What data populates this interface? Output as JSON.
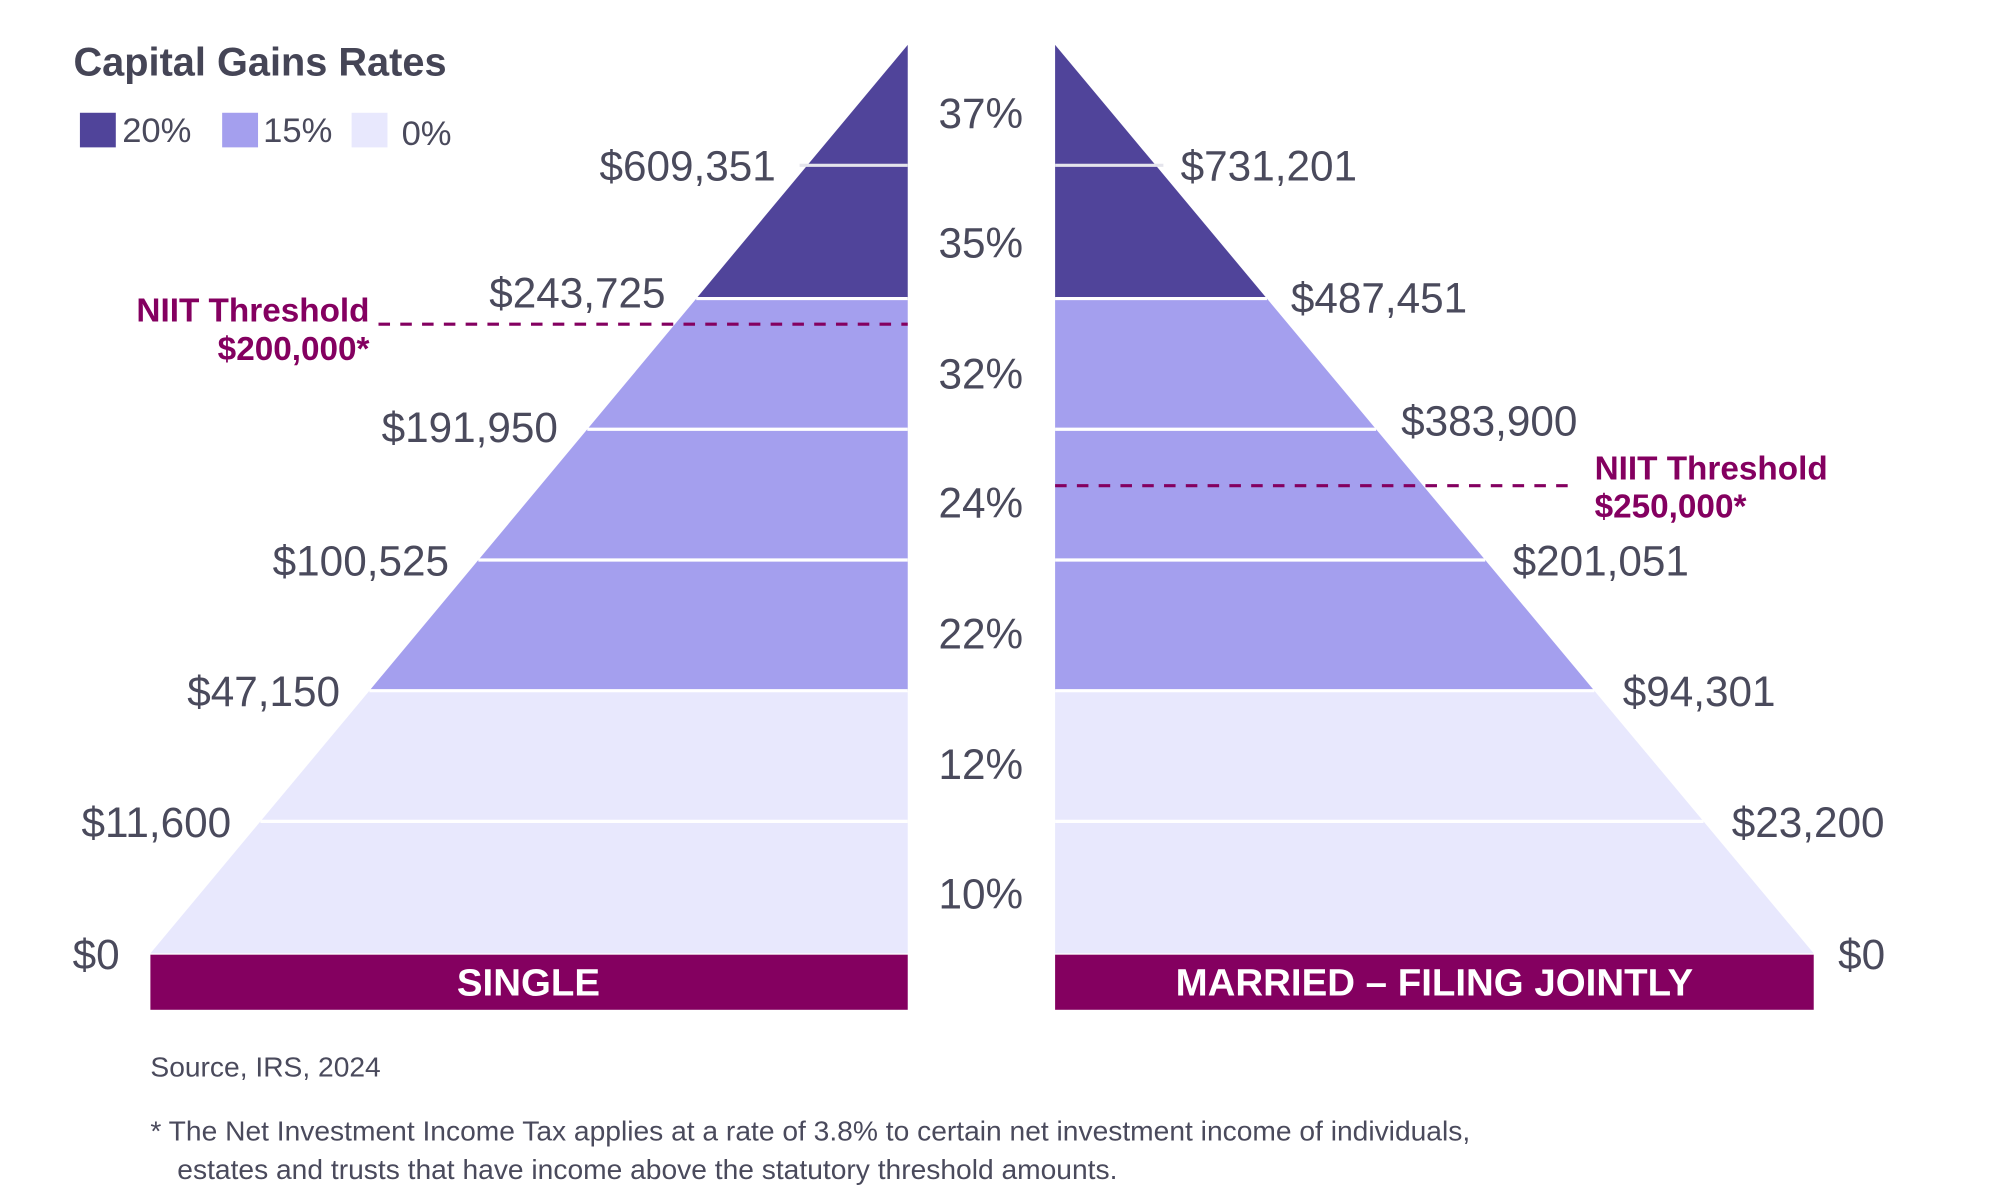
{
  "title": "Capital Gains Rates",
  "legend": [
    {
      "label": "20%",
      "color": "#50449a"
    },
    {
      "label": "15%",
      "color": "#a49fee"
    },
    {
      "label": "0%",
      "color": "#e8e8fd"
    }
  ],
  "rates": [
    "37%",
    "35%",
    "32%",
    "24%",
    "22%",
    "12%",
    "10%"
  ],
  "single": {
    "label": "SINGLE",
    "thresholds": [
      "$609,351",
      "$243,725",
      "$191,950",
      "$100,525",
      "$47,150",
      "$11,600",
      "$0"
    ],
    "band_colors": [
      "#50449a",
      "#50449a",
      "#a49fee",
      "#a49fee",
      "#a49fee",
      "#e8e8fd",
      "#e8e8fd"
    ],
    "niit": {
      "line1": "NIIT Threshold",
      "line2": "$200,000*"
    }
  },
  "married": {
    "label": "MARRIED – FILING JOINTLY",
    "thresholds": [
      "$731,201",
      "$487,451",
      "$383,900",
      "$201,051",
      "$94,301",
      "$23,200",
      "$0"
    ],
    "band_colors": [
      "#50449a",
      "#50449a",
      "#a49fee",
      "#a49fee",
      "#a49fee",
      "#e8e8fd",
      "#e8e8fd"
    ],
    "niit": {
      "line1": "NIIT Threshold",
      "line2": "$250,000*"
    }
  },
  "colors": {
    "bar": "#840060",
    "niit": "#840060"
  },
  "source": "Source, IRS, 2024",
  "note_line1": "* The Net Investment Income Tax applies at a rate of 3.8% to certain net investment income of individuals,",
  "note_line2": "estates and trusts that have income above the statutory threshold amounts."
}
